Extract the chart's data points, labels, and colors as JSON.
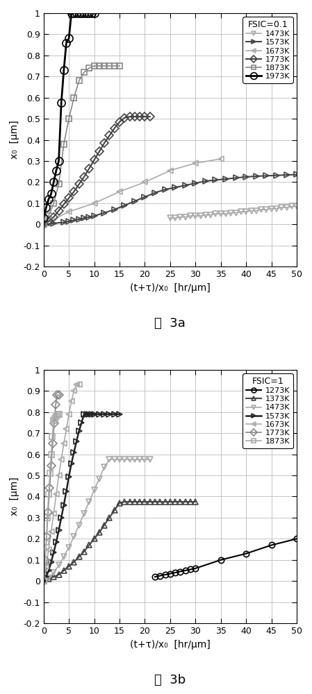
{
  "fig3a": {
    "title": "FSIC=0.1",
    "xlabel": "(t+τ)/x₀  [hr/μm]",
    "ylabel": "x₀  [μm]",
    "xlim": [
      0,
      50
    ],
    "ylim": [
      -0.2,
      1.0
    ],
    "yticks": [
      -0.2,
      -0.1,
      0.0,
      0.1,
      0.2,
      0.3,
      0.4,
      0.5,
      0.6,
      0.7,
      0.8,
      0.9,
      1.0
    ],
    "xticks": [
      0,
      5,
      10,
      15,
      20,
      25,
      30,
      35,
      40,
      45,
      50
    ],
    "series": [
      {
        "label": "1473K",
        "color": "#aaaaaa",
        "marker": "v",
        "markersize": 6,
        "linewidth": 1.2,
        "x": [
          25,
          26,
          27,
          28,
          29,
          30,
          31,
          32,
          33,
          34,
          35,
          36,
          37,
          38,
          39,
          40,
          41,
          42,
          43,
          44,
          45,
          46,
          47,
          48,
          49,
          50
        ],
        "y": [
          0.03,
          0.03,
          0.035,
          0.035,
          0.04,
          0.04,
          0.04,
          0.045,
          0.045,
          0.05,
          0.05,
          0.05,
          0.055,
          0.055,
          0.06,
          0.06,
          0.065,
          0.065,
          0.07,
          0.07,
          0.075,
          0.075,
          0.08,
          0.08,
          0.085,
          0.085
        ]
      },
      {
        "label": "1573K",
        "color": "#444444",
        "marker": ">",
        "markersize": 6,
        "linewidth": 1.5,
        "x": [
          0,
          2,
          4,
          5,
          6,
          7,
          8,
          9,
          10,
          12,
          14,
          16,
          18,
          20,
          22,
          24,
          26,
          28,
          30,
          32,
          34,
          36,
          38,
          40,
          42,
          44,
          46,
          48,
          50
        ],
        "y": [
          0.0,
          0.005,
          0.01,
          0.015,
          0.02,
          0.025,
          0.03,
          0.035,
          0.04,
          0.055,
          0.07,
          0.09,
          0.11,
          0.13,
          0.15,
          0.165,
          0.175,
          0.185,
          0.195,
          0.205,
          0.21,
          0.215,
          0.22,
          0.225,
          0.228,
          0.23,
          0.232,
          0.234,
          0.236
        ]
      },
      {
        "label": "1673K",
        "color": "#aaaaaa",
        "marker": "<",
        "markersize": 6,
        "linewidth": 1.2,
        "x": [
          0,
          5,
          10,
          15,
          20,
          25,
          30,
          35
        ],
        "y": [
          0.0,
          0.06,
          0.1,
          0.155,
          0.2,
          0.255,
          0.29,
          0.31
        ]
      },
      {
        "label": "1773K",
        "color": "#444444",
        "marker": "D",
        "markersize": 6,
        "linewidth": 1.5,
        "x": [
          0,
          1,
          2,
          3,
          4,
          5,
          6,
          7,
          8,
          9,
          10,
          11,
          12,
          13,
          14,
          15,
          16,
          17,
          18,
          19,
          20,
          21
        ],
        "y": [
          0.0,
          0.015,
          0.035,
          0.065,
          0.095,
          0.125,
          0.155,
          0.19,
          0.225,
          0.265,
          0.305,
          0.345,
          0.385,
          0.42,
          0.455,
          0.485,
          0.505,
          0.51,
          0.51,
          0.51,
          0.51,
          0.51
        ]
      },
      {
        "label": "1873K",
        "color": "#888888",
        "marker": "s",
        "markersize": 6,
        "linewidth": 1.2,
        "x": [
          0,
          1,
          2,
          3,
          4,
          5,
          6,
          7,
          8,
          9,
          10,
          11,
          12,
          13,
          14,
          15
        ],
        "y": [
          0.0,
          0.04,
          0.1,
          0.19,
          0.38,
          0.5,
          0.6,
          0.68,
          0.72,
          0.74,
          0.75,
          0.75,
          0.75,
          0.75,
          0.75,
          0.75
        ]
      },
      {
        "label": "1973K",
        "color": "#000000",
        "marker": "o",
        "markersize": 8,
        "linewidth": 2.0,
        "x": [
          0,
          0.5,
          1.0,
          1.5,
          2.0,
          2.5,
          3.0,
          3.5,
          4.0,
          4.5,
          5.0,
          5.5,
          6.0,
          6.5,
          7.0,
          7.5,
          8.0,
          8.5,
          9.0,
          9.5,
          10.0
        ],
        "y": [
          0.03,
          0.08,
          0.12,
          0.145,
          0.2,
          0.255,
          0.3,
          0.575,
          0.73,
          0.86,
          0.88,
          1.0,
          1.0,
          1.0,
          1.0,
          1.0,
          1.0,
          1.0,
          1.0,
          1.0,
          1.0
        ]
      }
    ]
  },
  "fig3b": {
    "title": "FSIC=1",
    "xlabel": "(t+τ)/x₀  [hr/μm]",
    "ylabel": "x₀  [μm]",
    "xlim": [
      0,
      50
    ],
    "ylim": [
      -0.2,
      1.0
    ],
    "yticks": [
      -0.2,
      -0.1,
      0.0,
      0.1,
      0.2,
      0.3,
      0.4,
      0.5,
      0.6,
      0.7,
      0.8,
      0.9,
      1.0
    ],
    "xticks": [
      0,
      5,
      10,
      15,
      20,
      25,
      30,
      35,
      40,
      45,
      50
    ],
    "series": [
      {
        "label": "1273K",
        "color": "#000000",
        "marker": "o",
        "markersize": 6,
        "linewidth": 1.5,
        "x": [
          22,
          23,
          24,
          25,
          26,
          27,
          28,
          29,
          30,
          35,
          40,
          45,
          50
        ],
        "y": [
          0.02,
          0.025,
          0.03,
          0.035,
          0.04,
          0.045,
          0.05,
          0.055,
          0.06,
          0.1,
          0.13,
          0.17,
          0.2
        ]
      },
      {
        "label": "1373K",
        "color": "#444444",
        "marker": "^",
        "markersize": 6,
        "linewidth": 1.5,
        "x": [
          0,
          1,
          2,
          3,
          4,
          5,
          6,
          7,
          8,
          9,
          10,
          11,
          12,
          13,
          14,
          15,
          16,
          17,
          18,
          19,
          20,
          21,
          22,
          23,
          24,
          25,
          26,
          27,
          28,
          29,
          30
        ],
        "y": [
          0.0,
          0.01,
          0.02,
          0.03,
          0.05,
          0.07,
          0.09,
          0.115,
          0.14,
          0.17,
          0.2,
          0.23,
          0.265,
          0.3,
          0.335,
          0.37,
          0.375,
          0.375,
          0.375,
          0.375,
          0.375,
          0.375,
          0.375,
          0.375,
          0.375,
          0.375,
          0.375,
          0.375,
          0.375,
          0.375,
          0.375
        ]
      },
      {
        "label": "1473K",
        "color": "#aaaaaa",
        "marker": "v",
        "markersize": 6,
        "linewidth": 1.2,
        "x": [
          0,
          1,
          2,
          3,
          4,
          5,
          6,
          7,
          8,
          9,
          10,
          11,
          12,
          13,
          14,
          15,
          16,
          17,
          18,
          19,
          20,
          21
        ],
        "y": [
          0.0,
          0.015,
          0.04,
          0.075,
          0.115,
          0.16,
          0.21,
          0.265,
          0.32,
          0.375,
          0.43,
          0.485,
          0.54,
          0.575,
          0.575,
          0.575,
          0.575,
          0.575,
          0.575,
          0.575,
          0.575,
          0.575
        ]
      },
      {
        "label": "1573K",
        "color": "#222222",
        "marker": ">",
        "markersize": 6,
        "linewidth": 1.8,
        "x": [
          0,
          0.5,
          1,
          1.5,
          2,
          2.5,
          3,
          3.5,
          4,
          4.5,
          5,
          5.5,
          6,
          6.5,
          7,
          7.5,
          8,
          8.5,
          9,
          9.5,
          10,
          11,
          12,
          13,
          14,
          15
        ],
        "y": [
          0.0,
          0.02,
          0.05,
          0.09,
          0.135,
          0.185,
          0.24,
          0.3,
          0.36,
          0.425,
          0.495,
          0.555,
          0.61,
          0.66,
          0.71,
          0.75,
          0.79,
          0.79,
          0.79,
          0.79,
          0.79,
          0.79,
          0.79,
          0.79,
          0.79,
          0.79
        ]
      },
      {
        "label": "1673K",
        "color": "#aaaaaa",
        "marker": "<",
        "markersize": 6,
        "linewidth": 1.2,
        "x": [
          0,
          0.5,
          1,
          1.5,
          2,
          2.5,
          3,
          3.5,
          4,
          4.5,
          5,
          5.5,
          6,
          6.5,
          7
        ],
        "y": [
          0.0,
          0.07,
          0.15,
          0.235,
          0.32,
          0.41,
          0.5,
          0.575,
          0.65,
          0.72,
          0.79,
          0.85,
          0.9,
          0.93,
          0.93
        ]
      },
      {
        "label": "1773K",
        "color": "#888888",
        "marker": "D",
        "markersize": 6,
        "linewidth": 1.2,
        "x": [
          0,
          0.3,
          0.6,
          0.9,
          1.2,
          1.5,
          1.8,
          2.1,
          2.4,
          2.7,
          3.0
        ],
        "y": [
          0.0,
          0.1,
          0.21,
          0.325,
          0.44,
          0.545,
          0.65,
          0.745,
          0.835,
          0.88,
          0.88
        ]
      },
      {
        "label": "1873K",
        "color": "#aaaaaa",
        "marker": "s",
        "markersize": 6,
        "linewidth": 1.2,
        "x": [
          0,
          0.25,
          0.5,
          0.75,
          1.0,
          1.25,
          1.5,
          1.75,
          2.0,
          2.25,
          2.5,
          2.75,
          3.0
        ],
        "y": [
          0.0,
          0.085,
          0.185,
          0.3,
          0.41,
          0.51,
          0.6,
          0.685,
          0.76,
          0.77,
          0.78,
          0.79,
          0.79
        ]
      }
    ]
  },
  "caption_a": "图  3a",
  "caption_b": "图  3b",
  "background": "#ffffff",
  "grid_color": "#bbbbbb"
}
